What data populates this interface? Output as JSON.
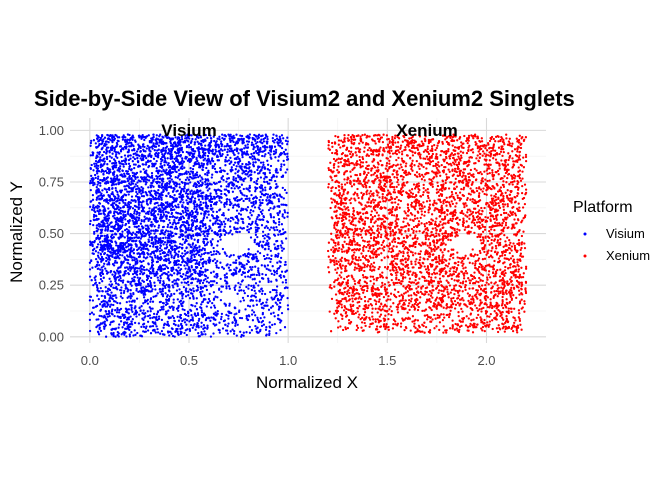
{
  "chart_data": {
    "type": "scatter",
    "title": "Side-by-Side View of Visium2 and Xenium2 Singlets",
    "xlabel": "Normalized X",
    "ylabel": "Normalized Y",
    "xlim": [
      -0.1,
      2.3
    ],
    "ylim": [
      -0.03,
      1.06
    ],
    "x_ticks": [
      "0.0",
      "0.5",
      "1.0",
      "1.5",
      "2.0"
    ],
    "x_tick_values": [
      0.0,
      0.5,
      1.0,
      1.5,
      2.0
    ],
    "y_ticks": [
      "0.00",
      "0.25",
      "0.50",
      "0.75",
      "1.00"
    ],
    "y_tick_values": [
      0.0,
      0.25,
      0.5,
      0.75,
      1.0
    ],
    "grid": true,
    "legend": {
      "title": "Platform",
      "position": "right"
    },
    "facet_labels": [
      {
        "text": "Visium",
        "x": 0.5
      },
      {
        "text": "Xenium",
        "x": 1.7
      }
    ],
    "series": [
      {
        "name": "Visium",
        "color": "#0000ff",
        "x_range": [
          0.0,
          1.0
        ],
        "y_range": [
          0.0,
          0.98
        ],
        "cavity_center": [
          0.74,
          0.45
        ],
        "cavity_radius": 0.08
      },
      {
        "name": "Xenium",
        "color": "#ff0000",
        "x_range": [
          1.2,
          2.2
        ],
        "y_range": [
          0.02,
          0.98
        ],
        "cavity_center": [
          1.88,
          0.45
        ],
        "cavity_radius": 0.07
      }
    ]
  }
}
